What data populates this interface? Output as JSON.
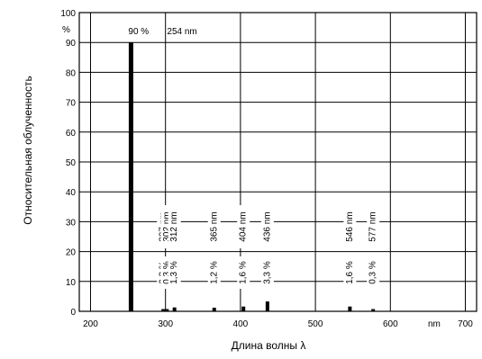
{
  "chart_data": {
    "type": "bar",
    "title": "",
    "xlabel": "Длина волны λ",
    "ylabel": "Относительная облученность",
    "x_unit_label": "nm",
    "y_unit_label": "%",
    "xlim": [
      185,
      715
    ],
    "ylim": [
      0,
      100
    ],
    "grid": true,
    "x_ticks": [
      {
        "value": 200,
        "label": "200"
      },
      {
        "value": 300,
        "label": "300"
      },
      {
        "value": 400,
        "label": "400"
      },
      {
        "value": 500,
        "label": "500"
      },
      {
        "value": 600,
        "label": "600"
      },
      {
        "value": 700,
        "label": "700"
      }
    ],
    "y_ticks": [
      {
        "value": 0,
        "label": "0"
      },
      {
        "value": 10,
        "label": "10"
      },
      {
        "value": 20,
        "label": "20"
      },
      {
        "value": 30,
        "label": "30"
      },
      {
        "value": 40,
        "label": "40"
      },
      {
        "value": 50,
        "label": "50"
      },
      {
        "value": 60,
        "label": "60"
      },
      {
        "value": 70,
        "label": "70"
      },
      {
        "value": 80,
        "label": "80"
      },
      {
        "value": 90,
        "label": "90"
      },
      {
        "value": 100,
        "label": "100"
      }
    ],
    "bars": [
      {
        "x": 254,
        "value": 90,
        "wavelength_label": "254 nm",
        "percent_label": "90 %"
      },
      {
        "x": 297,
        "value": 0.2,
        "wavelength_label": "297 nm",
        "percent_label": "0,2 %"
      },
      {
        "x": 302,
        "value": 0.3,
        "wavelength_label": "302 nm",
        "percent_label": "0,3 %"
      },
      {
        "x": 312,
        "value": 1.3,
        "wavelength_label": "312 nm",
        "percent_label": "1,3 %"
      },
      {
        "x": 365,
        "value": 1.2,
        "wavelength_label": "365 nm",
        "percent_label": "1,2 %"
      },
      {
        "x": 404,
        "value": 1.6,
        "wavelength_label": "404 nm",
        "percent_label": "1,6 %"
      },
      {
        "x": 436,
        "value": 3.3,
        "wavelength_label": "436 nm",
        "percent_label": "3,3 %"
      },
      {
        "x": 546,
        "value": 1.6,
        "wavelength_label": "546 nm",
        "percent_label": "1,6 %"
      },
      {
        "x": 577,
        "value": 0.3,
        "wavelength_label": "577 nm",
        "percent_label": "0,3 %"
      }
    ]
  }
}
